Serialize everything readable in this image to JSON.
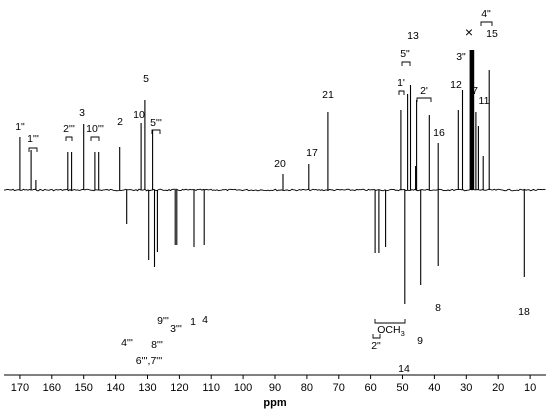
{
  "chart_data": {
    "type": "line",
    "title": "",
    "xlabel": "ppm",
    "ylabel": "",
    "xlim": [
      175,
      5
    ],
    "x_reversed": true,
    "x_ticks": [
      170,
      160,
      150,
      140,
      130,
      120,
      110,
      100,
      90,
      80,
      70,
      60,
      50,
      40,
      30,
      20,
      10
    ],
    "x_tick_labels": [
      "170",
      "160",
      "150",
      "140",
      "130",
      "120",
      "110",
      "100",
      "90",
      "80",
      "70",
      "60",
      "50",
      "40",
      "30",
      "20",
      "10"
    ],
    "grid": false,
    "legend": "none",
    "baseline": 0,
    "peaks": [
      {
        "ppm": 170.0,
        "intensity": 0.53,
        "label": "1\""
      },
      {
        "ppm": 166.5,
        "intensity": 0.4,
        "label": "1'''"
      },
      {
        "ppm": 165.0,
        "intensity": 0.1,
        "label": ""
      },
      {
        "ppm": 155.0,
        "intensity": 0.38,
        "label": "2'''"
      },
      {
        "ppm": 153.8,
        "intensity": 0.38,
        "label": ""
      },
      {
        "ppm": 150.0,
        "intensity": 0.66,
        "label": "3"
      },
      {
        "ppm": 146.5,
        "intensity": 0.38,
        "label": "10'''"
      },
      {
        "ppm": 145.3,
        "intensity": 0.38,
        "label": ""
      },
      {
        "ppm": 138.7,
        "intensity": 0.43,
        "label": "2"
      },
      {
        "ppm": 136.5,
        "intensity": -0.34,
        "label": "4'''"
      },
      {
        "ppm": 132.0,
        "intensity": 0.67,
        "label": "10"
      },
      {
        "ppm": 130.8,
        "intensity": 0.9,
        "label": "5"
      },
      {
        "ppm": 129.6,
        "intensity": -0.7,
        "label": "6''',7'''"
      },
      {
        "ppm": 128.4,
        "intensity": 0.6,
        "label": "5'''"
      },
      {
        "ppm": 127.8,
        "intensity": -0.77,
        "label": "8'''"
      },
      {
        "ppm": 126.9,
        "intensity": -0.62,
        "label": "9'''"
      },
      {
        "ppm": 121.3,
        "intensity": -0.55,
        "label": "3'''"
      },
      {
        "ppm": 120.8,
        "intensity": -0.55,
        "label": ""
      },
      {
        "ppm": 115.4,
        "intensity": -0.57,
        "label": "1"
      },
      {
        "ppm": 112.2,
        "intensity": -0.55,
        "label": "4"
      },
      {
        "ppm": 87.5,
        "intensity": 0.16,
        "label": "20"
      },
      {
        "ppm": 79.4,
        "intensity": 0.26,
        "label": "17"
      },
      {
        "ppm": 73.4,
        "intensity": 0.78,
        "label": "21"
      },
      {
        "ppm": 58.6,
        "intensity": -0.63,
        "label": "2\""
      },
      {
        "ppm": 57.4,
        "intensity": -0.63,
        "label": ""
      },
      {
        "ppm": 55.3,
        "intensity": -0.57,
        "label": "OCH3"
      },
      {
        "ppm": 50.5,
        "intensity": 0.8,
        "label": "1'"
      },
      {
        "ppm": 49.3,
        "intensity": -1.14,
        "label": "14"
      },
      {
        "ppm": 48.4,
        "intensity": 0.96,
        "label": "5\""
      },
      {
        "ppm": 47.5,
        "intensity": 1.05,
        "label": "13"
      },
      {
        "ppm": 45.9,
        "intensity": 0.24,
        "label": ""
      },
      {
        "ppm": 45.6,
        "intensity": 0.9,
        "label": ""
      },
      {
        "ppm": 44.3,
        "intensity": -0.95,
        "label": "9"
      },
      {
        "ppm": 41.6,
        "intensity": 0.75,
        "label": "2'"
      },
      {
        "ppm": 38.8,
        "intensity": 0.47,
        "label": "16"
      },
      {
        "ppm": 38.8,
        "intensity": -0.76,
        "label": "8"
      },
      {
        "ppm": 32.5,
        "intensity": 0.8,
        "label": "12"
      },
      {
        "ppm": 31.2,
        "intensity": 1.0,
        "label": "3\""
      },
      {
        "ppm": 28.5,
        "intensity": 1.4,
        "label": ""
      },
      {
        "ppm": 28.0,
        "intensity": 1.4,
        "label": ""
      },
      {
        "ppm": 27.0,
        "intensity": 0.78,
        "label": "7"
      },
      {
        "ppm": 26.2,
        "intensity": 0.64,
        "label": "11"
      },
      {
        "ppm": 24.7,
        "intensity": 0.34,
        "label": ""
      },
      {
        "ppm": 22.8,
        "intensity": 1.2,
        "label": "15"
      },
      {
        "ppm": 11.8,
        "intensity": -0.87,
        "label": "18"
      }
    ],
    "annotations": [
      "×",
      "4\""
    ]
  }
}
